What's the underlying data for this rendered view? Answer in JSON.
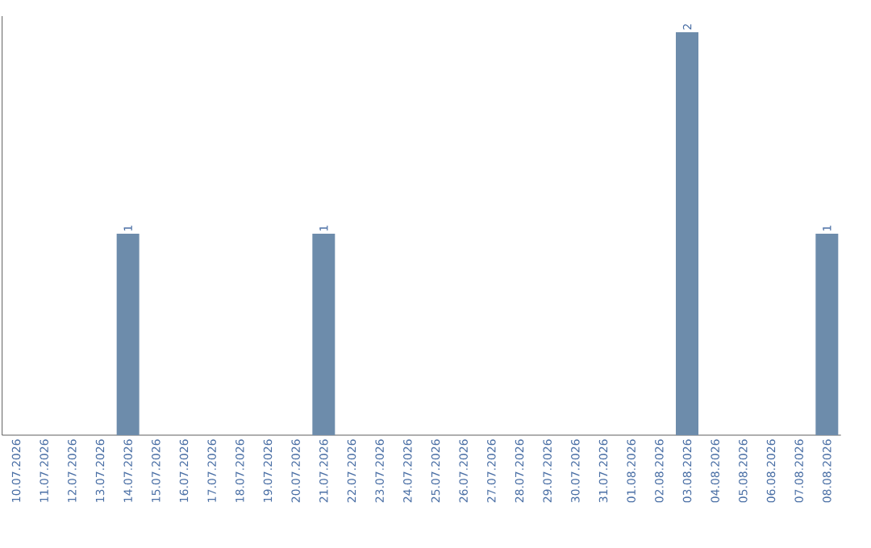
{
  "chart_data": {
    "type": "bar",
    "color": "#6d8cab",
    "categories": [
      "10.07.2026",
      "11.07.2026",
      "12.07.2026",
      "13.07.2026",
      "14.07.2026",
      "15.07.2026",
      "16.07.2026",
      "17.07.2026",
      "18.07.2026",
      "19.07.2026",
      "20.07.2026",
      "21.07.2026",
      "22.07.2026",
      "23.07.2026",
      "24.07.2026",
      "25.07.2026",
      "26.07.2026",
      "27.07.2026",
      "28.07.2026",
      "29.07.2026",
      "30.07.2026",
      "31.07.2026",
      "01.08.2026",
      "02.08.2026",
      "03.08.2026",
      "04.08.2026",
      "05.08.2026",
      "06.08.2026",
      "07.08.2026",
      "08.08.2026"
    ],
    "values": [
      0,
      0,
      0,
      0,
      1,
      0,
      0,
      0,
      0,
      0,
      0,
      1,
      0,
      0,
      0,
      0,
      0,
      0,
      0,
      0,
      0,
      0,
      0,
      0,
      2,
      0,
      0,
      0,
      0,
      1
    ],
    "value_labels": [
      null,
      null,
      null,
      null,
      "1",
      null,
      null,
      null,
      null,
      null,
      null,
      "1",
      null,
      null,
      null,
      null,
      null,
      null,
      null,
      null,
      null,
      null,
      null,
      null,
      "2",
      null,
      null,
      null,
      null,
      "1"
    ],
    "grid": false
  }
}
